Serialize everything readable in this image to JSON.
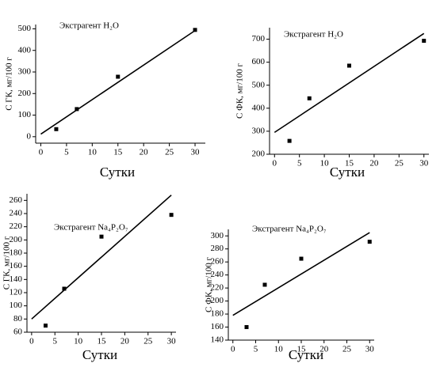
{
  "chart_data": [
    {
      "type": "scatter",
      "annotation": "Экстрагент H₂O",
      "xlabel": "Сутки",
      "ylabel": "С ГК, мг/100 г",
      "series": [
        {
          "type": "scatter",
          "color": "#000000",
          "x": [
            3,
            7,
            15,
            30
          ],
          "values": [
            35,
            128,
            278,
            495
          ]
        },
        {
          "type": "line",
          "color": "#000000",
          "x": [
            0,
            30
          ],
          "values": [
            12,
            492
          ]
        }
      ],
      "xlim": [
        -1,
        32
      ],
      "xticks": [
        0,
        5,
        10,
        15,
        20,
        25,
        30
      ],
      "ylim": [
        -30,
        520
      ],
      "yticks": [
        0,
        100,
        200,
        300,
        400,
        500
      ]
    },
    {
      "type": "scatter",
      "annotation": "Экстрагент H₂O",
      "xlabel": "Сутки",
      "ylabel": "С ФК, мг/100 г",
      "series": [
        {
          "type": "scatter",
          "color": "#000000",
          "x": [
            3,
            7,
            15,
            30
          ],
          "values": [
            258,
            443,
            585,
            693
          ]
        },
        {
          "type": "line",
          "color": "#000000",
          "x": [
            0,
            30
          ],
          "values": [
            295,
            725
          ]
        }
      ],
      "xlim": [
        -1,
        31
      ],
      "xticks": [
        0,
        5,
        10,
        15,
        20,
        25,
        30
      ],
      "ylim": [
        200,
        750
      ],
      "yticks": [
        200,
        300,
        400,
        500,
        600,
        700
      ]
    },
    {
      "type": "scatter",
      "annotation": "Экстрагент Na₄P₂O₇",
      "xlabel": "Сутки",
      "ylabel": "С ГК, мг/100 г",
      "series": [
        {
          "type": "scatter",
          "color": "#000000",
          "x": [
            3,
            7,
            15,
            30
          ],
          "values": [
            70,
            126,
            205,
            238
          ]
        },
        {
          "type": "line",
          "color": "#000000",
          "x": [
            0,
            30
          ],
          "values": [
            80,
            268
          ]
        }
      ],
      "xlim": [
        -1,
        31
      ],
      "xticks": [
        0,
        5,
        10,
        15,
        20,
        25,
        30
      ],
      "ylim": [
        60,
        270
      ],
      "yticks": [
        60,
        80,
        100,
        120,
        140,
        160,
        180,
        200,
        220,
        240,
        260
      ]
    },
    {
      "type": "scatter",
      "annotation": "Экстрагент Na₄P₂O₇",
      "xlabel": "Сутки",
      "ylabel": "С ФК, мг/100 г",
      "series": [
        {
          "type": "scatter",
          "color": "#000000",
          "x": [
            3,
            7,
            15,
            30
          ],
          "values": [
            160,
            225,
            265,
            291
          ]
        },
        {
          "type": "line",
          "color": "#000000",
          "x": [
            0,
            30
          ],
          "values": [
            178,
            305
          ]
        }
      ],
      "xlim": [
        -1,
        31
      ],
      "xticks": [
        0,
        5,
        10,
        15,
        20,
        25,
        30
      ],
      "ylim": [
        140,
        310
      ],
      "yticks": [
        140,
        160,
        180,
        200,
        220,
        240,
        260,
        280,
        300
      ]
    }
  ]
}
